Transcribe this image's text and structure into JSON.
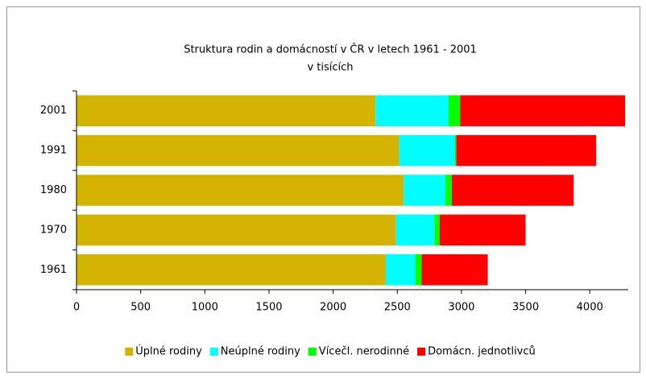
{
  "chart_data": {
    "type": "stacked-bar-horizontal",
    "title": "Struktura rodin a domácností v ČR v letech 1961 - 2001",
    "subtitle": "v tisících",
    "categories": [
      "2001",
      "1991",
      "1980",
      "1970",
      "1961"
    ],
    "series": [
      {
        "name": "Úplné rodiny",
        "color": "#d4b400",
        "values": [
          2330,
          2515,
          2550,
          2490,
          2410
        ]
      },
      {
        "name": "Neúplné rodiny",
        "color": "#00ffff",
        "values": [
          570,
          435,
          325,
          300,
          230
        ]
      },
      {
        "name": "Vícečl. nerodinné",
        "color": "#00ff00",
        "values": [
          90,
          10,
          50,
          40,
          50
        ]
      },
      {
        "name": "Domácn. jednotlivců",
        "color": "#ff0000",
        "values": [
          1285,
          1090,
          950,
          670,
          515
        ]
      }
    ],
    "xlim": [
      0,
      4300
    ],
    "xticks": [
      0,
      500,
      1000,
      1500,
      2000,
      2500,
      3000,
      3500,
      4000
    ],
    "legend": "bottom"
  }
}
